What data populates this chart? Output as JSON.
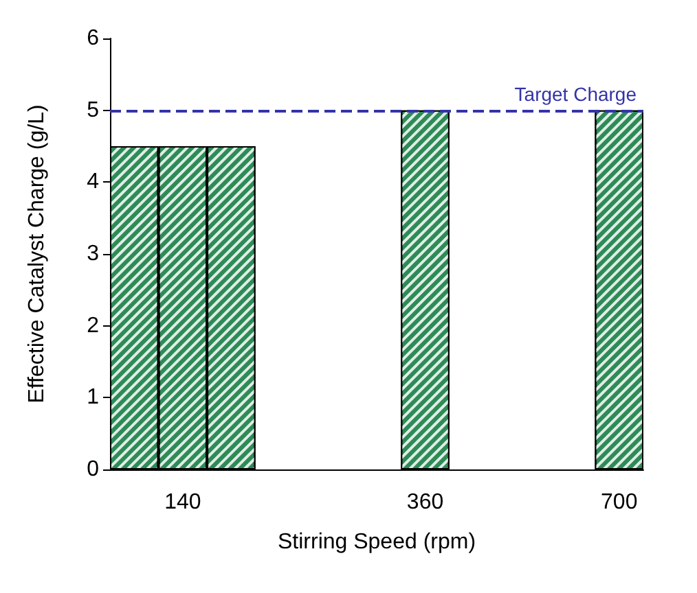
{
  "chart_data": {
    "type": "bar",
    "xlabel": "Stirring Speed (rpm)",
    "ylabel": "Effective Catalyst Charge (g/L)",
    "categories": [
      null,
      "140",
      null,
      null,
      null,
      null,
      "360",
      null,
      null,
      null,
      "700"
    ],
    "values": [
      4.5,
      4.5,
      4.5,
      null,
      null,
      null,
      5,
      null,
      null,
      null,
      5
    ],
    "color": "#2e8b57",
    "ylim": [
      0,
      6
    ],
    "yticks": [
      0,
      1,
      2,
      3,
      4,
      5,
      6
    ],
    "grid": false,
    "ref_lines": [
      {
        "axis": "y",
        "value": 5,
        "label": "Target Charge",
        "color": "#3333aa",
        "line_style": "dashed"
      }
    ]
  }
}
